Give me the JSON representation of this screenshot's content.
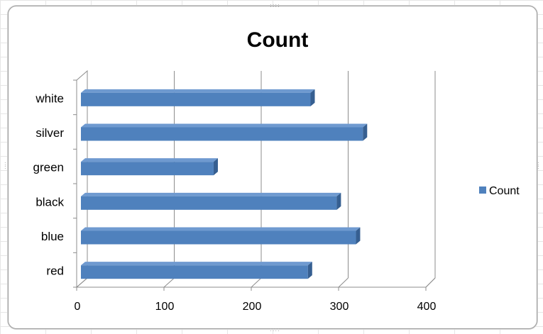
{
  "chart_data": {
    "type": "bar",
    "orientation": "horizontal",
    "three_d": true,
    "title": "Count",
    "categories": [
      "red",
      "blue",
      "black",
      "green",
      "silver",
      "white"
    ],
    "series": [
      {
        "name": "Count",
        "values": [
          260,
          315,
          293,
          152,
          323,
          263
        ],
        "color": "#4f81bd"
      }
    ],
    "xlim": [
      0,
      400
    ],
    "xticks": [
      0,
      100,
      200,
      300,
      400
    ],
    "xlabel": "",
    "ylabel": "",
    "grid": true,
    "legend_position": "right"
  }
}
